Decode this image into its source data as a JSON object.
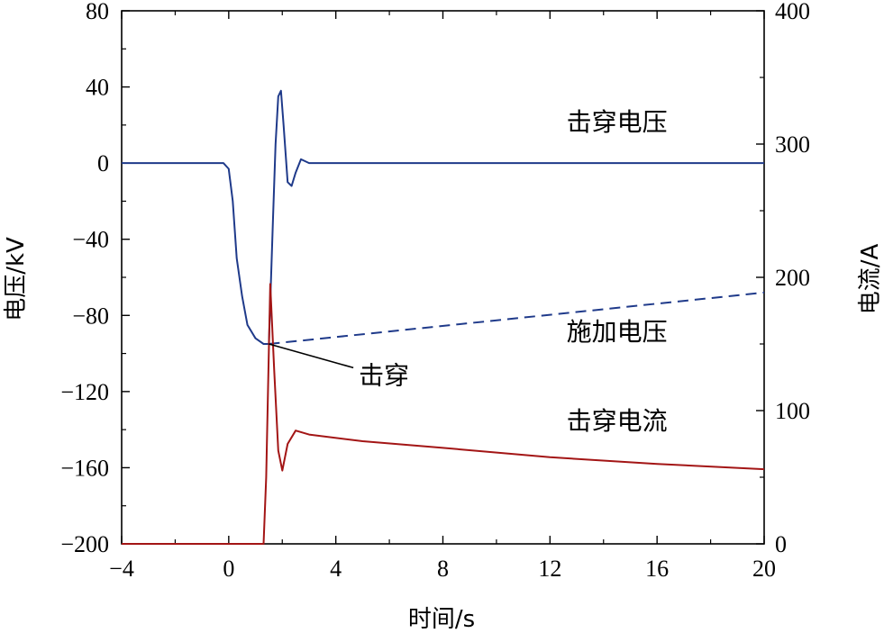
{
  "chart_data": {
    "type": "line",
    "xlabel": "时间/s",
    "ylabel_left": "电压/kV",
    "ylabel_right": "电流/A",
    "xlim": [
      -4,
      20
    ],
    "ylim_left": [
      -200,
      80
    ],
    "ylim_right": [
      0,
      400
    ],
    "x_ticks": [
      "−4",
      "0",
      "4",
      "8",
      "12",
      "16",
      "20"
    ],
    "y_left_ticks": [
      "80",
      "40",
      "0",
      "−40",
      "−80",
      "−120",
      "−160",
      "−200"
    ],
    "y_right_ticks": [
      "400",
      "300",
      "200",
      "100",
      "0"
    ],
    "grid": false,
    "colors": {
      "voltage": "#1f3a8a",
      "applied": "#1f3a8a",
      "current": "#a31515",
      "axes": "#000000"
    },
    "series": [
      {
        "name": "击穿电压",
        "axis": "left",
        "style": "solid",
        "x": [
          -4,
          -0.2,
          0.0,
          0.15,
          0.3,
          0.5,
          0.7,
          1.0,
          1.3,
          1.5,
          1.65,
          1.75,
          1.85,
          1.95,
          2.05,
          2.2,
          2.35,
          2.5,
          2.7,
          3.0,
          3.5,
          20
        ],
        "y": [
          0,
          0,
          -3,
          -20,
          -50,
          -70,
          -85,
          -92,
          -95,
          -95,
          -30,
          10,
          35,
          38,
          20,
          -10,
          -12,
          -5,
          2,
          0,
          0,
          0
        ]
      },
      {
        "name": "施加电压",
        "axis": "left",
        "style": "dashed",
        "x": [
          1.5,
          20
        ],
        "y": [
          -95,
          -68
        ]
      },
      {
        "name": "击穿电流",
        "axis": "right",
        "style": "solid",
        "x": [
          -4,
          1.3,
          1.4,
          1.55,
          1.7,
          1.85,
          2.0,
          2.2,
          2.5,
          3.0,
          5,
          8,
          12,
          16,
          20
        ],
        "y": [
          0,
          0,
          50,
          195,
          130,
          70,
          55,
          75,
          85,
          82,
          77,
          72,
          65,
          60,
          56
        ]
      }
    ],
    "annotations": [
      {
        "text": "击穿电压",
        "x": 14.5,
        "y": 17
      },
      {
        "text": "施加电压",
        "x": 14.5,
        "y": -93
      },
      {
        "text": "击穿电流",
        "x": 14.5,
        "y": -140
      },
      {
        "text": "击穿",
        "x": 5.8,
        "y": -116,
        "arrow_to": [
          1.5,
          -95
        ]
      }
    ]
  }
}
